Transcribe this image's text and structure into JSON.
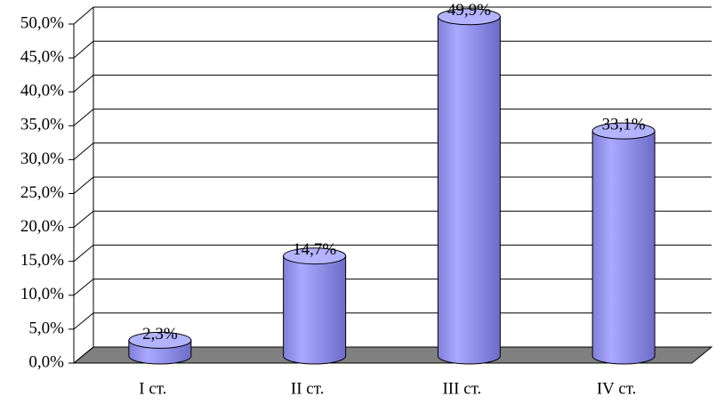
{
  "chart_data": {
    "type": "bar",
    "categories": [
      "I ст.",
      "II ст.",
      "III ст.",
      "IV ст."
    ],
    "values": [
      2.3,
      14.7,
      49.9,
      33.1
    ],
    "value_labels": [
      "2,3%",
      "14,7%",
      "49,9%",
      "33,1%"
    ],
    "color": "#9999ff",
    "ylim": [
      0,
      50
    ],
    "yticks": [
      {
        "value": 0,
        "label": "0,0%"
      },
      {
        "value": 5,
        "label": "5,0%"
      },
      {
        "value": 10,
        "label": "10,0%"
      },
      {
        "value": 15,
        "label": "15,0%"
      },
      {
        "value": 20,
        "label": "20,0%"
      },
      {
        "value": 25,
        "label": "25,0%"
      },
      {
        "value": 30,
        "label": "30,0%"
      },
      {
        "value": 35,
        "label": "35,0%"
      },
      {
        "value": 40,
        "label": "40,0%"
      },
      {
        "value": 45,
        "label": "45,0%"
      },
      {
        "value": 50,
        "label": "50,0%"
      }
    ],
    "grid": true
  }
}
